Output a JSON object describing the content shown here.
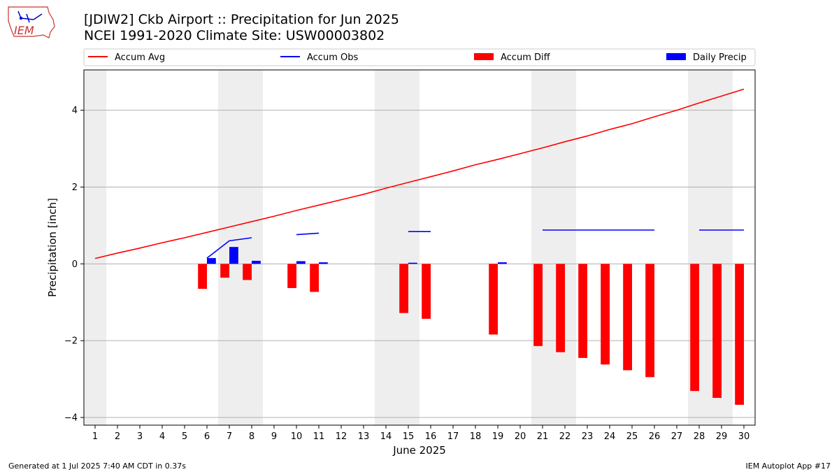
{
  "logo": {
    "text": "IEM",
    "colors": {
      "outline": "#cc3333",
      "accent": "#0000cc"
    }
  },
  "footer": {
    "generated": "Generated at 1 Jul 2025 7:40 AM CDT in 0.37s",
    "app": "IEM Autoplot App #17"
  },
  "chart_data": {
    "type": "bar",
    "title": "[JDIW2] Ckb Airport :: Precipitation for Jun 2025",
    "subtitle": "NCEI 1991-2020 Climate Site: USW00003802",
    "xlabel": "June 2025",
    "ylabel": "Precipitation [inch]",
    "ylim": [
      -4.2,
      5.05
    ],
    "xlim": [
      0.5,
      30.5
    ],
    "yticks": [
      -4,
      -2,
      0,
      2,
      4
    ],
    "yticklabels": [
      "−4",
      "−2",
      "0",
      "2",
      "4"
    ],
    "x": [
      1,
      2,
      3,
      4,
      5,
      6,
      7,
      8,
      9,
      10,
      11,
      12,
      13,
      14,
      15,
      16,
      17,
      18,
      19,
      20,
      21,
      22,
      23,
      24,
      25,
      26,
      27,
      28,
      29,
      30
    ],
    "xticklabels": [
      "1",
      "2",
      "3",
      "4",
      "5",
      "6",
      "7",
      "8",
      "9",
      "10",
      "11",
      "12",
      "13",
      "14",
      "15",
      "16",
      "17",
      "18",
      "19",
      "20",
      "21",
      "22",
      "23",
      "24",
      "25",
      "26",
      "27",
      "28",
      "29",
      "30"
    ],
    "weekend_shading": [
      1,
      7,
      8,
      14,
      15,
      21,
      22,
      28,
      29
    ],
    "grid": "y",
    "legend_placement": "top",
    "colors": {
      "avg": "#ff0000",
      "obs": "#0000ff",
      "diff": "#ff0000",
      "daily": "#0000ff",
      "shade": "#eeeeee",
      "grid": "#b0b0b0"
    },
    "series": [
      {
        "name": "Accum Avg",
        "kind": "line",
        "values": [
          0.14,
          0.28,
          0.41,
          0.55,
          0.68,
          0.82,
          0.96,
          1.1,
          1.24,
          1.39,
          1.53,
          1.67,
          1.81,
          1.97,
          2.12,
          2.27,
          2.42,
          2.58,
          2.72,
          2.87,
          3.02,
          3.18,
          3.33,
          3.5,
          3.65,
          3.83,
          4.0,
          4.19,
          4.37,
          4.55
        ]
      },
      {
        "name": "Accum Obs",
        "kind": "line",
        "values": [
          null,
          null,
          null,
          null,
          null,
          0.15,
          0.6,
          0.68,
          null,
          0.76,
          0.8,
          null,
          null,
          null,
          0.84,
          0.84,
          null,
          null,
          null,
          null,
          0.88,
          0.88,
          0.88,
          0.88,
          0.88,
          0.88,
          null,
          0.88,
          0.88,
          0.88
        ]
      },
      {
        "name": "Accum Diff",
        "kind": "bar",
        "offset": -0.2,
        "values": [
          0,
          0,
          0,
          0,
          0,
          -0.65,
          -0.36,
          -0.42,
          0,
          -0.63,
          -0.73,
          0,
          0,
          0,
          -1.28,
          -1.43,
          0,
          0,
          -1.84,
          0,
          -2.14,
          -2.3,
          -2.45,
          -2.62,
          -2.77,
          -2.95,
          0,
          -3.31,
          -3.49,
          -3.67
        ]
      },
      {
        "name": "Daily Precip",
        "kind": "bar",
        "offset": 0.2,
        "values": [
          0,
          0,
          0,
          0,
          0,
          0.15,
          0.44,
          0.08,
          0,
          0.07,
          0.04,
          0,
          0,
          0,
          0.03,
          0,
          0,
          0,
          0.04,
          0,
          0,
          0,
          0,
          0,
          0,
          0,
          0,
          0,
          0,
          0
        ]
      }
    ]
  }
}
